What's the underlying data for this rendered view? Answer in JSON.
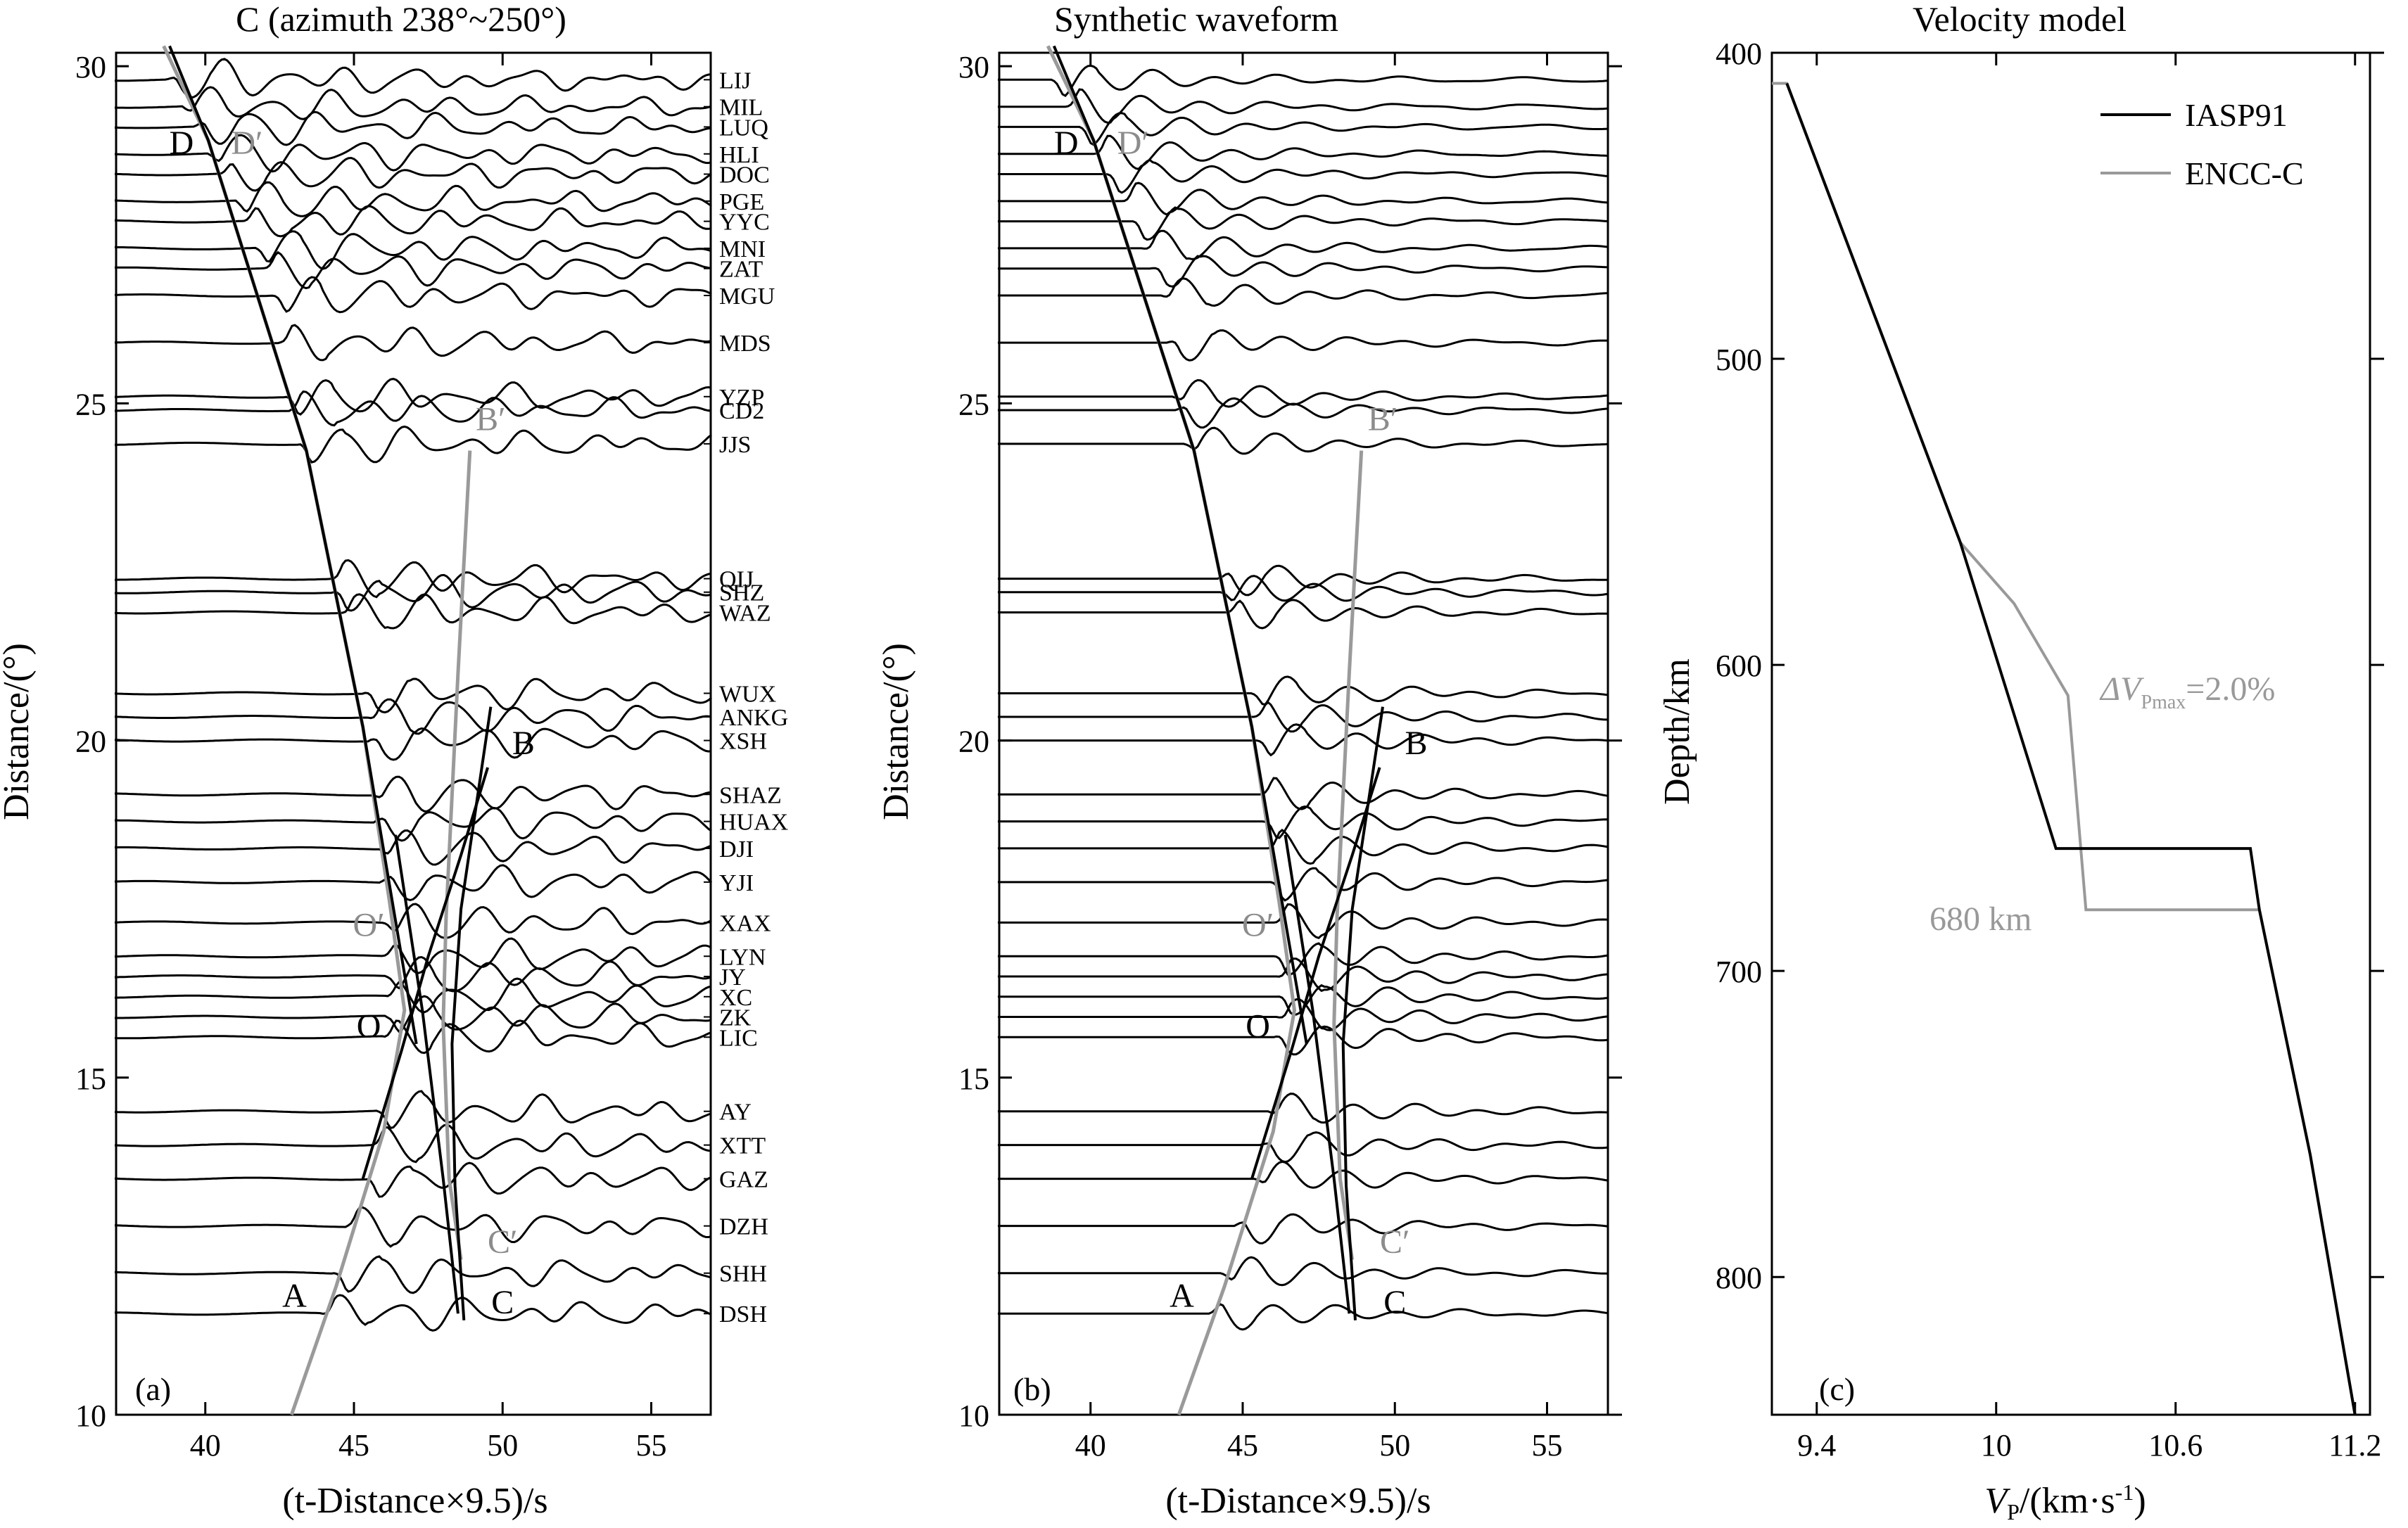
{
  "chart_data": [
    {
      "type": "line",
      "panel_label": "(a)",
      "title": "C (azimuth 238°~250°)",
      "xlabel": "(t-Distance×9.5)/s",
      "ylabel": "Distance/(°)",
      "xlim": [
        37,
        57
      ],
      "ylim": [
        10,
        30.2
      ],
      "xticks": [
        40,
        45,
        50,
        55
      ],
      "yticks": [
        10,
        15,
        20,
        25,
        30
      ],
      "stations": [
        {
          "name": "LIJ",
          "dist": 29.8,
          "onset": 39.2
        },
        {
          "name": "MIL",
          "dist": 29.4,
          "onset": 39.7
        },
        {
          "name": "LUQ",
          "dist": 29.1,
          "onset": 40.1
        },
        {
          "name": "HLI",
          "dist": 28.7,
          "onset": 40.6
        },
        {
          "name": "DOC",
          "dist": 28.4,
          "onset": 41.0
        },
        {
          "name": "PGE",
          "dist": 28.0,
          "onset": 41.5
        },
        {
          "name": "YYC",
          "dist": 27.7,
          "onset": 41.8
        },
        {
          "name": "MNI",
          "dist": 27.3,
          "onset": 42.2
        },
        {
          "name": "ZAT",
          "dist": 27.0,
          "onset": 42.5
        },
        {
          "name": "MGU",
          "dist": 26.6,
          "onset": 42.8
        },
        {
          "name": "MDS",
          "dist": 25.9,
          "onset": 43.0
        },
        {
          "name": "YZP",
          "dist": 25.1,
          "onset": 43.2
        },
        {
          "name": "CD2",
          "dist": 24.9,
          "onset": 43.3
        },
        {
          "name": "JJS",
          "dist": 24.4,
          "onset": 43.6
        },
        {
          "name": "QIJ",
          "dist": 22.4,
          "onset": 44.7
        },
        {
          "name": "SHZ",
          "dist": 22.2,
          "onset": 44.8
        },
        {
          "name": "WAZ",
          "dist": 21.9,
          "onset": 45.0
        },
        {
          "name": "WUX",
          "dist": 20.7,
          "onset": 45.8
        },
        {
          "name": "ANKG",
          "dist": 20.35,
          "onset": 45.9
        },
        {
          "name": "XSH",
          "dist": 20.0,
          "onset": 46.0
        },
        {
          "name": "SHAZ",
          "dist": 19.2,
          "onset": 46.1
        },
        {
          "name": "HUAX",
          "dist": 18.8,
          "onset": 46.2
        },
        {
          "name": "DJI",
          "dist": 18.4,
          "onset": 46.3
        },
        {
          "name": "YJI",
          "dist": 17.9,
          "onset": 46.4
        },
        {
          "name": "XAX",
          "dist": 17.3,
          "onset": 46.5
        },
        {
          "name": "LYN",
          "dist": 16.8,
          "onset": 46.5
        },
        {
          "name": "JY",
          "dist": 16.5,
          "onset": 46.6
        },
        {
          "name": "XC",
          "dist": 16.2,
          "onset": 46.6
        },
        {
          "name": "ZK",
          "dist": 15.9,
          "onset": 46.6
        },
        {
          "name": "LIC",
          "dist": 15.6,
          "onset": 46.5
        },
        {
          "name": "AY",
          "dist": 14.5,
          "onset": 46.3
        },
        {
          "name": "XTT",
          "dist": 14.0,
          "onset": 46.1
        },
        {
          "name": "GAZ",
          "dist": 13.5,
          "onset": 45.9
        },
        {
          "name": "DZH",
          "dist": 12.8,
          "onset": 45.2
        },
        {
          "name": "SHH",
          "dist": 12.1,
          "onset": 44.8
        },
        {
          "name": "DSH",
          "dist": 11.5,
          "onset": 44.4
        }
      ],
      "travel_time_curves": {
        "gray": [
          {
            "label": "D to A (through D′, O′)",
            "points": [
              [
                38.6,
                30.3
              ],
              [
                40.1,
                28.9
              ],
              [
                43.4,
                24.3
              ],
              [
                45.3,
                20.2
              ],
              [
                46.2,
                17.6
              ],
              [
                46.7,
                16.0
              ],
              [
                46.0,
                14.2
              ],
              [
                44.4,
                11.9
              ],
              [
                42.9,
                10.0
              ]
            ]
          },
          {
            "label": "B′ to C′",
            "points": [
              [
                48.9,
                24.3
              ],
              [
                48.5,
                21.0
              ],
              [
                48.1,
                17.4
              ],
              [
                48.0,
                15.8
              ],
              [
                48.2,
                13.5
              ],
              [
                48.6,
                12.3
              ]
            ]
          }
        ],
        "black": [
          {
            "label": "D branch",
            "points": [
              [
                38.8,
                30.3
              ],
              [
                40.1,
                28.9
              ],
              [
                43.4,
                24.3
              ],
              [
                45.3,
                20.2
              ],
              [
                46.6,
                16.8
              ],
              [
                47.1,
                15.5
              ]
            ]
          },
          {
            "label": "O to B",
            "points": [
              [
                45.3,
                13.5
              ],
              [
                46.6,
                15.4
              ],
              [
                47.5,
                16.8
              ],
              [
                48.6,
                18.3
              ],
              [
                49.5,
                19.6
              ]
            ]
          },
          {
            "label": "B to C",
            "points": [
              [
                49.6,
                20.5
              ],
              [
                48.6,
                17.5
              ],
              [
                48.3,
                15.5
              ],
              [
                48.4,
                13.4
              ],
              [
                48.7,
                11.4
              ]
            ]
          },
          {
            "label": "O′ to C",
            "points": [
              [
                46.4,
                18.6
              ],
              [
                47.3,
                16.0
              ],
              [
                48.0,
                13.5
              ],
              [
                48.5,
                11.5
              ]
            ]
          }
        ]
      },
      "point_labels": [
        {
          "text": "D",
          "x": 39.2,
          "y": 28.7,
          "color": "#000000"
        },
        {
          "text": "D′",
          "x": 41.4,
          "y": 28.7,
          "color": "#8c8c8c"
        },
        {
          "text": "B′",
          "x": 49.6,
          "y": 24.6,
          "color": "#8c8c8c"
        },
        {
          "text": "B",
          "x": 50.7,
          "y": 19.8,
          "color": "#000000"
        },
        {
          "text": "O′",
          "x": 45.5,
          "y": 17.1,
          "color": "#8c8c8c"
        },
        {
          "text": "O",
          "x": 45.5,
          "y": 15.6,
          "color": "#000000"
        },
        {
          "text": "C′",
          "x": 50.0,
          "y": 12.4,
          "color": "#8c8c8c"
        },
        {
          "text": "C",
          "x": 50.0,
          "y": 11.5,
          "color": "#000000"
        },
        {
          "text": "A",
          "x": 43.0,
          "y": 11.6,
          "color": "#000000"
        }
      ]
    },
    {
      "type": "line",
      "panel_label": "(b)",
      "title": "Synthetic waveform",
      "xlabel": "(t-Distance×9.5)/s",
      "ylabel": "Distance/(°)",
      "xlim": [
        37,
        57
      ],
      "ylim": [
        10,
        30.2
      ],
      "xticks": [
        40,
        45,
        50,
        55
      ],
      "yticks": [
        10,
        15,
        20,
        25,
        30
      ],
      "point_labels": [
        {
          "text": "D",
          "x": 39.2,
          "y": 28.7,
          "color": "#000000"
        },
        {
          "text": "D′",
          "x": 41.4,
          "y": 28.7,
          "color": "#8c8c8c"
        },
        {
          "text": "B′",
          "x": 49.6,
          "y": 24.6,
          "color": "#8c8c8c"
        },
        {
          "text": "B",
          "x": 50.7,
          "y": 19.8,
          "color": "#000000"
        },
        {
          "text": "O′",
          "x": 45.5,
          "y": 17.1,
          "color": "#8c8c8c"
        },
        {
          "text": "O",
          "x": 45.5,
          "y": 15.6,
          "color": "#000000"
        },
        {
          "text": "C′",
          "x": 50.0,
          "y": 12.4,
          "color": "#8c8c8c"
        },
        {
          "text": "C",
          "x": 50.0,
          "y": 11.5,
          "color": "#000000"
        },
        {
          "text": "A",
          "x": 43.0,
          "y": 11.6,
          "color": "#000000"
        }
      ]
    },
    {
      "type": "line",
      "panel_label": "(c)",
      "title": "Velocity model",
      "xlabel": "V",
      "xlabel_sub": "P",
      "xlabel_tail": "/(km·s",
      "xlabel_sup": "-1",
      "xlabel_close": ")",
      "ylabel": "Depth/km",
      "xlim": [
        9.25,
        11.25
      ],
      "ylim": [
        400,
        845
      ],
      "y_inverted": true,
      "xticks": [
        "9.4",
        "10",
        "10.6",
        "11.2"
      ],
      "yticks": [
        400,
        500,
        600,
        700,
        800
      ],
      "series": [
        {
          "name": "IASP91",
          "color": "#000000",
          "points": [
            [
              9.3,
              410
            ],
            [
              9.88,
              560
            ],
            [
              10.2,
              660
            ],
            [
              10.85,
              660
            ],
            [
              10.88,
              680
            ],
            [
              11.05,
              760
            ],
            [
              11.2,
              845
            ]
          ]
        },
        {
          "name": "ENCC-C",
          "color": "#999999",
          "points": [
            [
              9.25,
              410
            ],
            [
              9.3,
              410
            ],
            [
              9.88,
              560
            ],
            [
              10.06,
              580
            ],
            [
              10.24,
              610
            ],
            [
              10.3,
              680
            ],
            [
              10.88,
              680
            ],
            [
              11.05,
              760
            ],
            [
              11.2,
              845
            ]
          ]
        }
      ],
      "annotations": [
        {
          "id": "dv_lhs",
          "text": "ΔV",
          "sub": "Pmax",
          "rhs": "=2.0%",
          "x": 10.35,
          "y": 608
        },
        {
          "id": "depth_680",
          "text": "680 km",
          "x": 9.97,
          "y": 682
        }
      ]
    }
  ]
}
